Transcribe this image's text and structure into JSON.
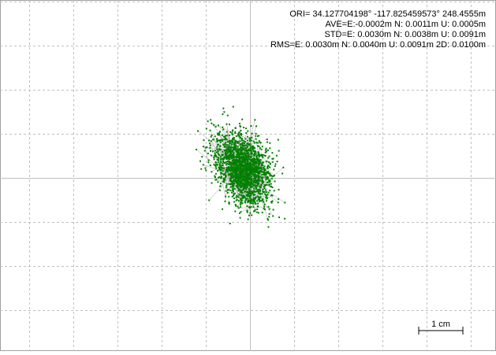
{
  "stats": {
    "ori": "ORI= 34.127704198° -117.825459573° 248.4555m",
    "ave": "AVE=E:-0.0002m N: 0.0011m U: 0.0005m",
    "std": "STD=E: 0.0030m N: 0.0038m U: 0.0091m",
    "rms": "RMS=E: 0.0030m N: 0.0040m U: 0.0091m 2D: 0.0100m"
  },
  "scale_label": "1 cm"
}
